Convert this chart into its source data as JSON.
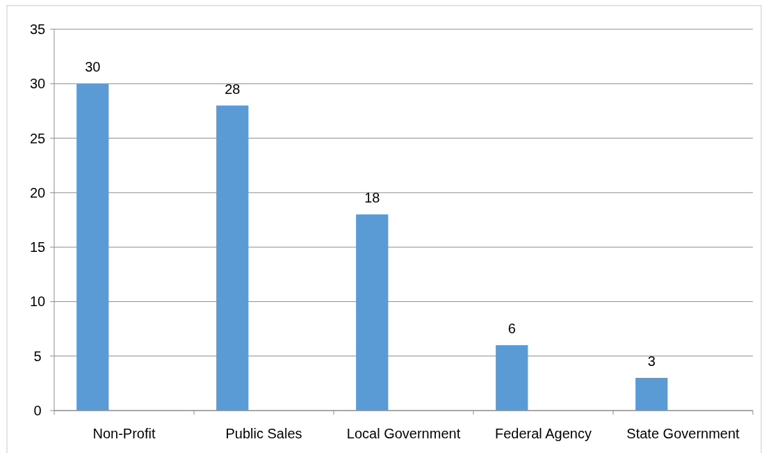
{
  "chart_data": {
    "type": "bar",
    "categories": [
      "Non-Profit",
      "Public Sales",
      "Local Government",
      "Federal Agency",
      "State Government"
    ],
    "values": [
      30,
      28,
      18,
      6,
      3
    ],
    "color": "#5b9bd5",
    "ylim": [
      0,
      35
    ],
    "yticks": [
      0,
      5,
      10,
      15,
      20,
      25,
      30,
      35
    ],
    "grid": "y",
    "data_labels": true
  }
}
